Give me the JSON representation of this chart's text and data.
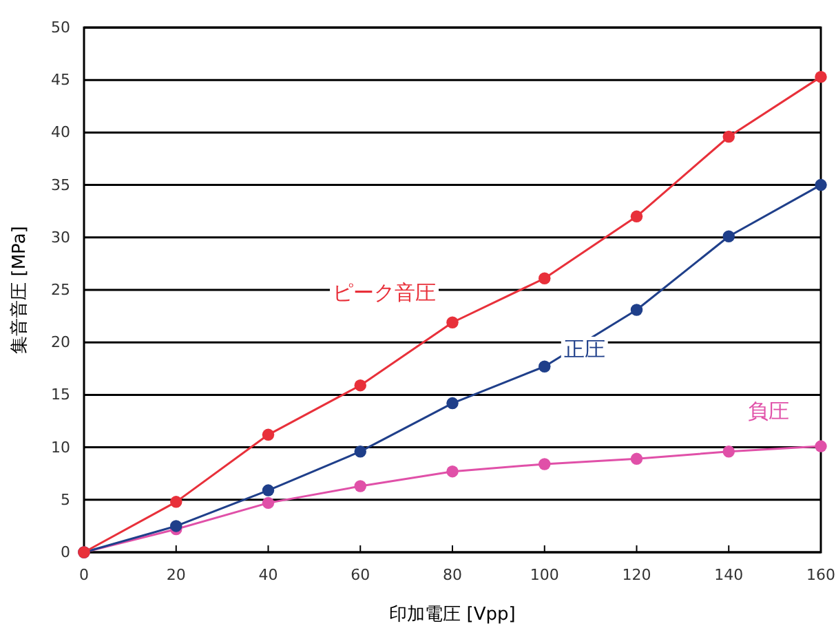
{
  "chart_data": {
    "type": "line",
    "xlabel": "印加電圧 [Vpp]",
    "ylabel": "集音音圧 [MPa]",
    "x": [
      0,
      20,
      40,
      60,
      80,
      100,
      120,
      140,
      160
    ],
    "series": [
      {
        "name": "ピーク音圧",
        "color": "#e8303a",
        "values": [
          0,
          4.8,
          11.2,
          15.9,
          21.9,
          26.1,
          32.0,
          39.6,
          45.3
        ]
      },
      {
        "name": "正圧",
        "color": "#1f3f8a",
        "values": [
          0,
          2.5,
          5.9,
          9.6,
          14.2,
          17.7,
          23.1,
          30.1,
          35.0
        ]
      },
      {
        "name": "負圧",
        "color": "#e050a8",
        "values": [
          0,
          2.2,
          4.7,
          6.3,
          7.7,
          8.4,
          8.9,
          9.6,
          10.1
        ]
      }
    ],
    "xlim": [
      0,
      160
    ],
    "xticks": [
      0,
      20,
      40,
      60,
      80,
      100,
      120,
      140,
      160
    ],
    "ylim": [
      0,
      50
    ],
    "yticks": [
      0,
      5,
      10,
      15,
      20,
      25,
      30,
      35,
      40,
      45,
      50
    ],
    "grid": "y",
    "marker": "circle",
    "line_style": "solid"
  }
}
